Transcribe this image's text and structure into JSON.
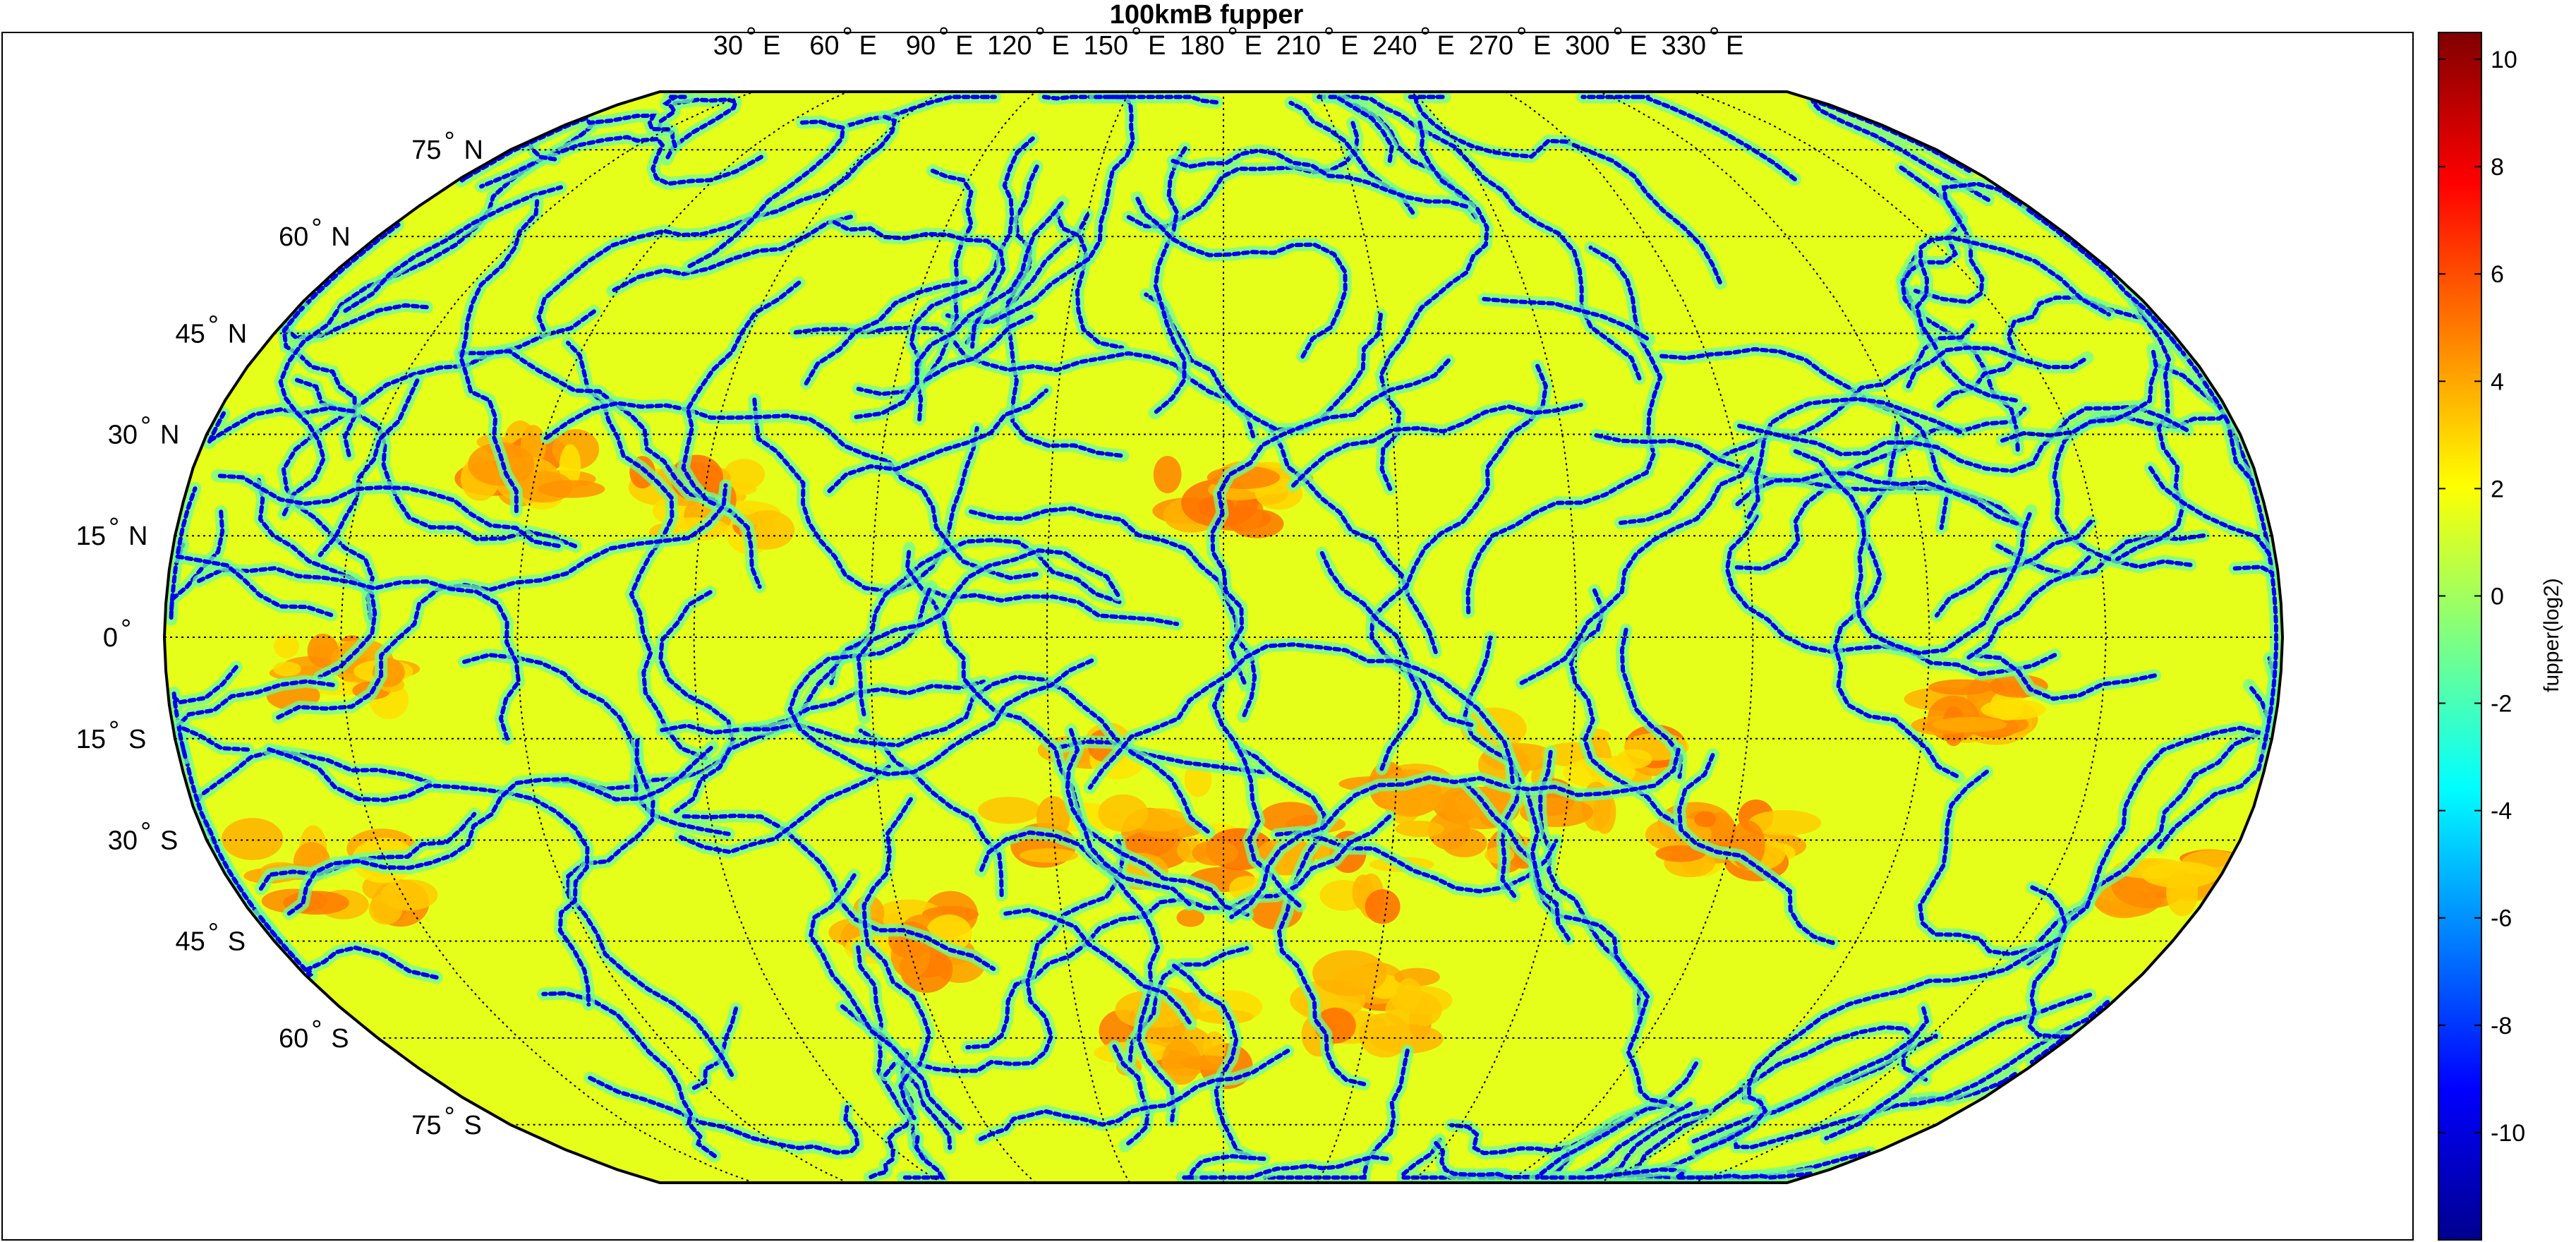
{
  "chart_data": {
    "type": "heatmap",
    "title": "100kmB fupper",
    "projection": "robinson",
    "grid": true,
    "lon_ticks": [
      {
        "label": "30",
        "suffix": "E"
      },
      {
        "label": "60",
        "suffix": "E"
      },
      {
        "label": "90",
        "suffix": "E"
      },
      {
        "label": "120",
        "suffix": "E"
      },
      {
        "label": "150",
        "suffix": "E"
      },
      {
        "label": "180",
        "suffix": "E"
      },
      {
        "label": "210",
        "suffix": "E"
      },
      {
        "label": "240",
        "suffix": "E"
      },
      {
        "label": "270",
        "suffix": "E"
      },
      {
        "label": "300",
        "suffix": "E"
      },
      {
        "label": "330",
        "suffix": "E"
      }
    ],
    "lat_ticks": [
      {
        "label": "75",
        "suffix": "N",
        "value": 75
      },
      {
        "label": "60",
        "suffix": "N",
        "value": 60
      },
      {
        "label": "45",
        "suffix": "N",
        "value": 45
      },
      {
        "label": "30",
        "suffix": "N",
        "value": 30
      },
      {
        "label": "15",
        "suffix": "N",
        "value": 15
      },
      {
        "label": "0",
        "suffix": "",
        "value": 0
      },
      {
        "label": "15",
        "suffix": "S",
        "value": -15
      },
      {
        "label": "30",
        "suffix": "S",
        "value": -30
      },
      {
        "label": "45",
        "suffix": "S",
        "value": -45
      },
      {
        "label": "60",
        "suffix": "S",
        "value": -60
      },
      {
        "label": "75",
        "suffix": "S",
        "value": -75
      }
    ],
    "colorbar": {
      "label": "fupper(log2)",
      "range": [
        -12,
        10.5
      ],
      "ticks": [
        10,
        8,
        6,
        4,
        2,
        0,
        -2,
        -4,
        -6,
        -8,
        -10
      ],
      "colormap": "jet"
    },
    "field_description_values": {
      "typical_range": [
        -12,
        7
      ],
      "dominant_value": 1.5
    }
  }
}
